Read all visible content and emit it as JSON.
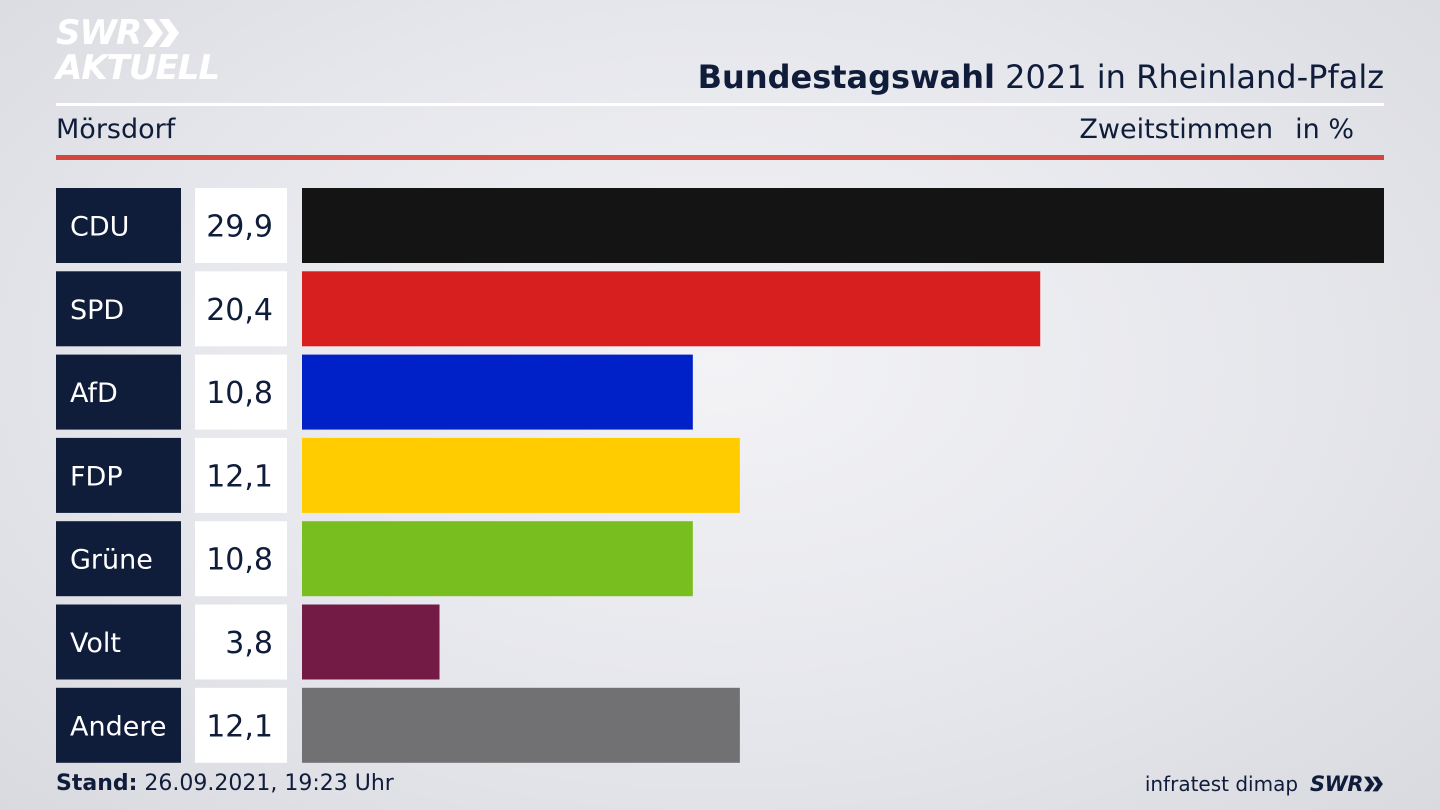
{
  "header": {
    "logo_line1": "SWR",
    "logo_line2": "AKTUELL",
    "title_bold": "Bundestagswahl",
    "title_rest": " 2021 in Rheinland-Pfalz",
    "location": "Mörsdorf",
    "vote_type": "Zweitstimmen",
    "unit": "in %"
  },
  "footer": {
    "stand_label": "Stand:",
    "stand_value": " 26.09.2021, 19:23 Uhr",
    "source": "infratest dimap",
    "brand": "SWR"
  },
  "colors": {
    "label_box": "#0f1c3a",
    "value_box": "#ffffff",
    "title_text": "#0f1c3a",
    "accent_red_rule": "#d4453b"
  },
  "chart_data": {
    "type": "bar",
    "orientation": "horizontal",
    "title": "Bundestagswahl 2021 in Rheinland-Pfalz",
    "subtitle": "Mörsdorf",
    "categories": [
      "CDU",
      "SPD",
      "AfD",
      "FDP",
      "Grüne",
      "Volt",
      "Andere"
    ],
    "values": [
      29.9,
      20.4,
      10.8,
      12.1,
      10.8,
      3.8,
      12.1
    ],
    "value_labels": [
      "29,9",
      "20,4",
      "10,8",
      "12,1",
      "10,8",
      "3,8",
      "12,1"
    ],
    "bar_colors": [
      "#141414",
      "#d71f1f",
      "#0020c8",
      "#ffcc00",
      "#78be1e",
      "#731b44",
      "#717173"
    ],
    "unit": "in %",
    "xlim": [
      0,
      29.9
    ],
    "grid": false
  }
}
